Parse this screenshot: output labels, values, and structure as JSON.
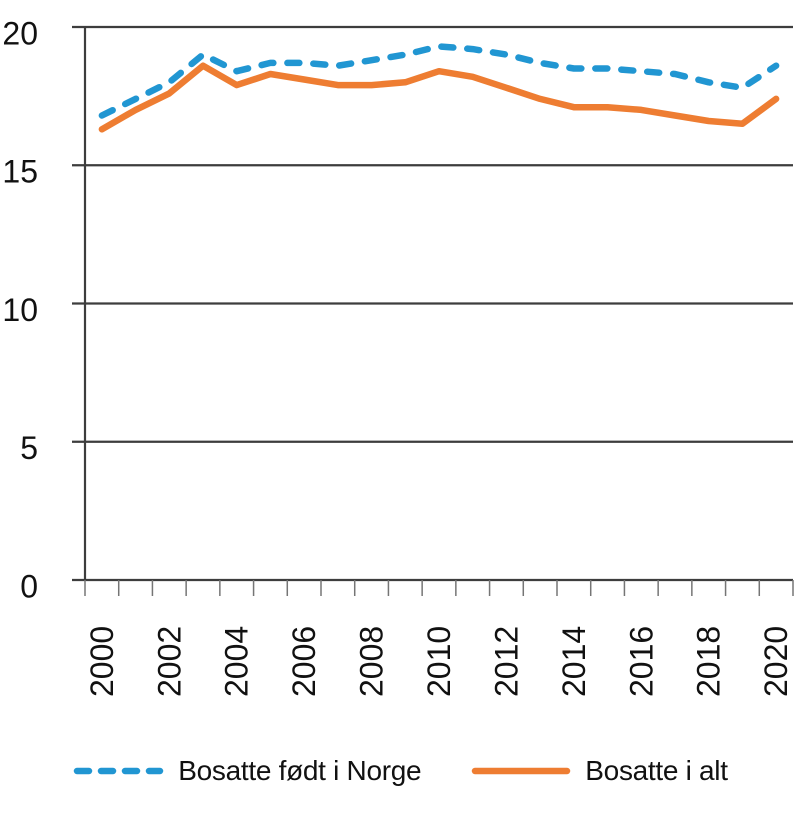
{
  "chart_data": {
    "type": "line",
    "x": [
      2000,
      2001,
      2002,
      2003,
      2004,
      2005,
      2006,
      2007,
      2008,
      2009,
      2010,
      2011,
      2012,
      2013,
      2014,
      2015,
      2016,
      2017,
      2018,
      2019,
      2020
    ],
    "xtick_label_every": 2,
    "series": [
      {
        "name": "Bosatte født i Norge",
        "color": "#2196d2",
        "style": "dashed",
        "values": [
          16.8,
          17.4,
          18.0,
          19.0,
          18.4,
          18.7,
          18.7,
          18.6,
          18.8,
          19.0,
          19.3,
          19.2,
          19.0,
          18.7,
          18.5,
          18.5,
          18.4,
          18.3,
          18.0,
          17.8,
          18.6
        ]
      },
      {
        "name": "Bosatte i alt",
        "color": "#ee7d32",
        "style": "solid",
        "values": [
          16.3,
          17.0,
          17.6,
          18.6,
          17.9,
          18.3,
          18.1,
          17.9,
          17.9,
          18.0,
          18.4,
          18.2,
          17.8,
          17.4,
          17.1,
          17.1,
          17.0,
          16.8,
          16.6,
          16.5,
          17.4
        ]
      }
    ],
    "ylim": [
      0,
      20
    ],
    "yticks": [
      0,
      5,
      10,
      15,
      20
    ],
    "grid": "horizontal",
    "legend_position": "bottom"
  },
  "legend": {
    "items": [
      {
        "label": "Bosatte født i Norge"
      },
      {
        "label": "Bosatte i alt"
      }
    ]
  }
}
